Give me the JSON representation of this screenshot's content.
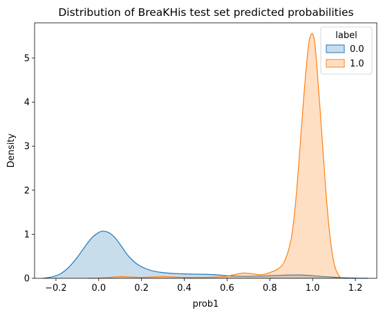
{
  "chart_data": {
    "type": "area",
    "title": "Distribution of BreaKHis test set predicted probabilities",
    "xlabel": "prob1",
    "ylabel": "Density",
    "xlim": [
      -0.3,
      1.3
    ],
    "ylim": [
      0,
      5.8
    ],
    "xticks": [
      -0.2,
      0.0,
      0.2,
      0.4,
      0.6,
      0.8,
      1.0,
      1.2
    ],
    "xtick_labels": [
      "−0.2",
      "0.0",
      "0.2",
      "0.4",
      "0.6",
      "0.8",
      "1.0",
      "1.2"
    ],
    "yticks": [
      0,
      1,
      2,
      3,
      4,
      5
    ],
    "ytick_labels": [
      "0",
      "1",
      "2",
      "3",
      "4",
      "5"
    ],
    "grid": false,
    "legend": {
      "title": "label",
      "placement": "top-right"
    },
    "series": [
      {
        "name": "0.0",
        "color": "#1f77b4",
        "fill": "#1f77b4",
        "points": [
          [
            -0.26,
            0.0
          ],
          [
            -0.22,
            0.03
          ],
          [
            -0.18,
            0.1
          ],
          [
            -0.14,
            0.25
          ],
          [
            -0.1,
            0.48
          ],
          [
            -0.06,
            0.75
          ],
          [
            -0.03,
            0.93
          ],
          [
            0.0,
            1.04
          ],
          [
            0.02,
            1.07
          ],
          [
            0.05,
            1.03
          ],
          [
            0.08,
            0.9
          ],
          [
            0.11,
            0.7
          ],
          [
            0.14,
            0.5
          ],
          [
            0.18,
            0.32
          ],
          [
            0.22,
            0.22
          ],
          [
            0.26,
            0.16
          ],
          [
            0.3,
            0.13
          ],
          [
            0.35,
            0.11
          ],
          [
            0.4,
            0.1
          ],
          [
            0.45,
            0.095
          ],
          [
            0.5,
            0.09
          ],
          [
            0.55,
            0.08
          ],
          [
            0.6,
            0.06
          ],
          [
            0.65,
            0.05
          ],
          [
            0.7,
            0.045
          ],
          [
            0.75,
            0.05
          ],
          [
            0.8,
            0.06
          ],
          [
            0.85,
            0.07
          ],
          [
            0.9,
            0.075
          ],
          [
            0.95,
            0.075
          ],
          [
            1.0,
            0.06
          ],
          [
            1.05,
            0.04
          ],
          [
            1.1,
            0.025
          ],
          [
            1.15,
            0.012
          ],
          [
            1.2,
            0.005
          ],
          [
            1.26,
            0.0
          ]
        ]
      },
      {
        "name": "1.0",
        "color": "#ff7f0e",
        "fill": "#ff7f0e",
        "points": [
          [
            -0.05,
            0.0
          ],
          [
            0.0,
            0.005
          ],
          [
            0.05,
            0.02
          ],
          [
            0.1,
            0.04
          ],
          [
            0.15,
            0.03
          ],
          [
            0.2,
            0.02
          ],
          [
            0.25,
            0.03
          ],
          [
            0.3,
            0.04
          ],
          [
            0.35,
            0.03
          ],
          [
            0.4,
            0.02
          ],
          [
            0.45,
            0.02
          ],
          [
            0.5,
            0.02
          ],
          [
            0.55,
            0.03
          ],
          [
            0.6,
            0.05
          ],
          [
            0.65,
            0.1
          ],
          [
            0.68,
            0.12
          ],
          [
            0.72,
            0.1
          ],
          [
            0.76,
            0.08
          ],
          [
            0.8,
            0.13
          ],
          [
            0.84,
            0.22
          ],
          [
            0.87,
            0.4
          ],
          [
            0.9,
            0.9
          ],
          [
            0.92,
            1.7
          ],
          [
            0.94,
            2.9
          ],
          [
            0.96,
            4.2
          ],
          [
            0.98,
            5.25
          ],
          [
            0.99,
            5.5
          ],
          [
            1.0,
            5.55
          ],
          [
            1.01,
            5.35
          ],
          [
            1.02,
            4.8
          ],
          [
            1.04,
            3.5
          ],
          [
            1.06,
            2.1
          ],
          [
            1.08,
            1.0
          ],
          [
            1.1,
            0.35
          ],
          [
            1.12,
            0.08
          ],
          [
            1.14,
            0.0
          ]
        ]
      }
    ]
  }
}
